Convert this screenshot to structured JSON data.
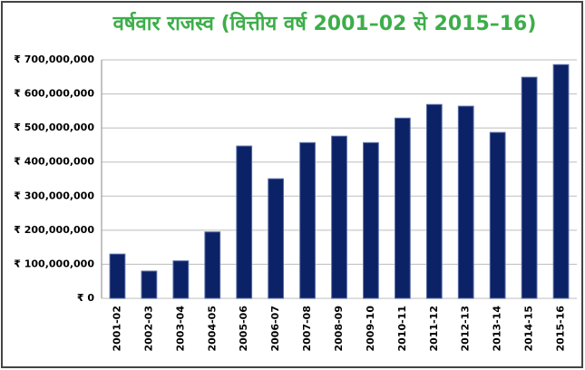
{
  "chart_data": {
    "type": "bar",
    "title": "वर्षवार राजस्व (वित्तीय वर्ष 2001–02 से 2015–16)",
    "categories": [
      "2001-02",
      "2002-03",
      "2003-04",
      "2004-05",
      "2005-06",
      "2006-07",
      "2007-08",
      "2008-09",
      "2009-10",
      "2010-11",
      "2011-12",
      "2012-13",
      "2013-14",
      "2014-15",
      "2015-16"
    ],
    "values": [
      130000000,
      80000000,
      110000000,
      195000000,
      447000000,
      351000000,
      457000000,
      476000000,
      457000000,
      529000000,
      569000000,
      564000000,
      487000000,
      649000000,
      686000000
    ],
    "color": "#0c2266",
    "ylim": [
      0,
      700000000
    ],
    "yticks": [
      {
        "value": 0,
        "label": "₹ 0"
      },
      {
        "value": 100000000,
        "label": "₹ 100,000,000"
      },
      {
        "value": 200000000,
        "label": "₹ 200,000,000"
      },
      {
        "value": 300000000,
        "label": "₹ 300,000,000"
      },
      {
        "value": 400000000,
        "label": "₹ 400,000,000"
      },
      {
        "value": 500000000,
        "label": "₹ 500,000,000"
      },
      {
        "value": 600000000,
        "label": "₹ 600,000,000"
      },
      {
        "value": 700000000,
        "label": "₹ 700,000,000"
      }
    ],
    "grid": true
  }
}
